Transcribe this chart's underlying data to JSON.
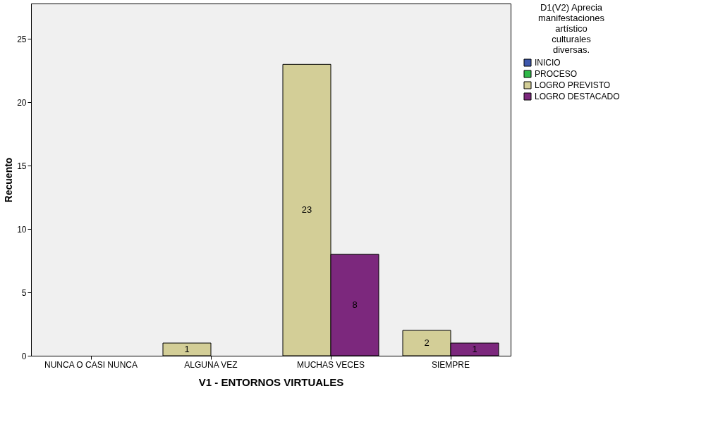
{
  "chart_data": {
    "type": "bar",
    "xlabel": "V1 - ENTORNOS VIRTUALES",
    "ylabel": "Recuento",
    "legend_title": "D1(V2) Aprecia manifestaciones artístico culturales diversas.",
    "categories": [
      "NUNCA O CASI NUNCA",
      "ALGUNA VEZ",
      "MUCHAS VECES",
      "SIEMPRE"
    ],
    "series": [
      {
        "name": "INICIO",
        "color": "#3e58ac",
        "values": [
          null,
          null,
          null,
          null
        ]
      },
      {
        "name": "PROCESO",
        "color": "#2eb848",
        "values": [
          null,
          null,
          null,
          null
        ]
      },
      {
        "name": "LOGRO PREVISTO",
        "color": "#d3ce97",
        "values": [
          null,
          1,
          23,
          2
        ]
      },
      {
        "name": "LOGRO DESTACADO",
        "color": "#7c287d",
        "values": [
          null,
          null,
          8,
          1
        ]
      }
    ],
    "ylim": [
      0,
      27.8
    ],
    "yticks": [
      0,
      5,
      10,
      15,
      20,
      25
    ],
    "grid": false,
    "legend": "top right",
    "data_labels": true
  }
}
